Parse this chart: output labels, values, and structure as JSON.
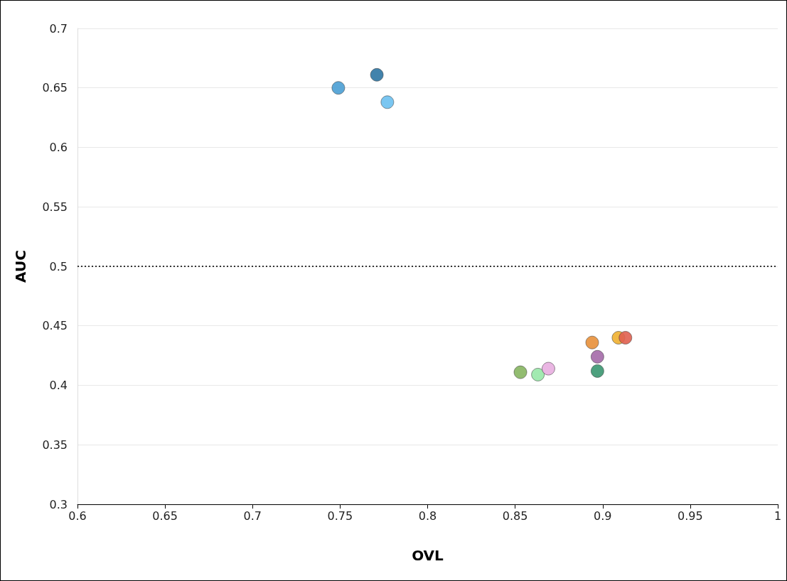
{
  "chart_data": {
    "type": "scatter",
    "xlabel": "OVL",
    "ylabel": "AUC",
    "x": [
      0.749,
      0.771,
      0.777,
      0.853,
      0.863,
      0.869,
      0.894,
      0.897,
      0.897,
      0.909,
      0.913
    ],
    "values": [
      0.65,
      0.661,
      0.638,
      0.411,
      0.409,
      0.414,
      0.436,
      0.424,
      0.412,
      0.44,
      0.44
    ],
    "colors": [
      "#4a9fd4",
      "#2e75a3",
      "#6cc0f0",
      "#86b560",
      "#98e8a8",
      "#e8aee0",
      "#e8903a",
      "#a46aa8",
      "#3a9670",
      "#f0b030",
      "#e06050"
    ],
    "xlim": [
      0.6,
      1
    ],
    "xticks": [
      0.6,
      0.65,
      0.7,
      0.75,
      0.8,
      0.85,
      0.9,
      0.95,
      1
    ],
    "ylim": [
      0.3,
      0.7
    ],
    "yticks": [
      0.3,
      0.35,
      0.4,
      0.45,
      0.5,
      0.55,
      0.6,
      0.65,
      0.7
    ],
    "ref_lines": [
      {
        "axis": "y",
        "value": 0.5,
        "color": "#333333",
        "line_style": "dotted"
      }
    ],
    "grid": "y",
    "marker": "circle"
  }
}
